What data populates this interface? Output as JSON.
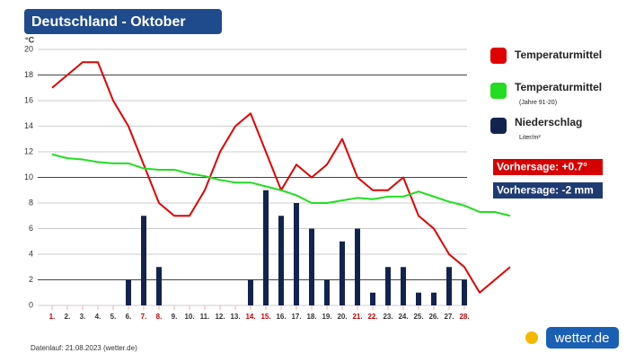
{
  "chart_data": {
    "type": "combo",
    "title": "Deutschland - Oktober",
    "y_label": "°C",
    "ylim": [
      0,
      20
    ],
    "yticks": [
      0,
      2,
      4,
      6,
      8,
      10,
      12,
      14,
      16,
      18,
      20
    ],
    "xlim": [
      1,
      31
    ],
    "xticks": [
      {
        "value": 1,
        "label": "1."
      },
      {
        "value": 2,
        "label": "2."
      },
      {
        "value": 3,
        "label": "3."
      },
      {
        "value": 4,
        "label": "4."
      },
      {
        "value": 5,
        "label": "5."
      },
      {
        "value": 6,
        "label": "6."
      },
      {
        "value": 7,
        "label": "7."
      },
      {
        "value": 8,
        "label": "8."
      },
      {
        "value": 9,
        "label": "9."
      },
      {
        "value": 10,
        "label": "10."
      },
      {
        "value": 11,
        "label": "11."
      },
      {
        "value": 12,
        "label": "12."
      },
      {
        "value": 13,
        "label": "13."
      },
      {
        "value": 14,
        "label": "14."
      },
      {
        "value": 15,
        "label": "15."
      },
      {
        "value": 16,
        "label": "16."
      },
      {
        "value": 17,
        "label": "17."
      },
      {
        "value": 18,
        "label": "18."
      },
      {
        "value": 19,
        "label": "19."
      },
      {
        "value": 20,
        "label": "20."
      },
      {
        "value": 21,
        "label": "21."
      },
      {
        "value": 22,
        "label": "22."
      },
      {
        "value": 23,
        "label": "23."
      },
      {
        "value": 24,
        "label": "24."
      },
      {
        "value": 25,
        "label": "25."
      },
      {
        "value": 26,
        "label": "26."
      },
      {
        "value": 27,
        "label": "27."
      },
      {
        "value": 28,
        "label": "28."
      }
    ],
    "xtick_colors": [
      "#c00000",
      "#333",
      "#333",
      "#333",
      "#333",
      "#333",
      "#c00000",
      "#c00000",
      "#333",
      "#333",
      "#333",
      "#333",
      "#333",
      "#c00000",
      "#c00000",
      "#333",
      "#333",
      "#333",
      "#333",
      "#333",
      "#c00000",
      "#c00000",
      "#333",
      "#333",
      "#333",
      "#333",
      "#333",
      "#c00000"
    ],
    "grid": true,
    "series": [
      {
        "name": "Temperaturmittel",
        "type": "line",
        "color": "#e00000",
        "x": [
          1,
          2,
          3,
          4,
          5,
          6,
          7,
          8,
          9,
          10,
          11,
          12,
          13,
          14,
          15,
          16,
          17,
          18,
          19,
          20,
          21,
          22,
          23,
          24,
          25,
          26,
          27,
          28,
          29,
          30,
          31
        ],
        "values": [
          17,
          18,
          19,
          19,
          16,
          14,
          11,
          8,
          7,
          7,
          9,
          12,
          14,
          15,
          12,
          9,
          11,
          10,
          11,
          13,
          10,
          9,
          9,
          10,
          7,
          6,
          4,
          3,
          1,
          2,
          3
        ]
      },
      {
        "name": "Temperaturmittel",
        "sublabel": "(Jahre 91-20)",
        "type": "line",
        "color": "#22dd22",
        "x": [
          1,
          2,
          3,
          4,
          5,
          6,
          7,
          8,
          9,
          10,
          11,
          12,
          13,
          14,
          15,
          16,
          17,
          18,
          19,
          20,
          21,
          22,
          23,
          24,
          25,
          26,
          27,
          28,
          29,
          30,
          31
        ],
        "values": [
          11.8,
          11.5,
          11.4,
          11.2,
          11.1,
          11.1,
          10.7,
          10.6,
          10.6,
          10.3,
          10.1,
          9.8,
          9.6,
          9.6,
          9.3,
          9,
          8.6,
          8,
          8,
          8.2,
          8.4,
          8.3,
          8.5,
          8.5,
          8.9,
          8.5,
          8.1,
          7.8,
          7.3,
          7.3,
          7
        ]
      },
      {
        "name": "Niederschlag",
        "sublabel": "Liter/m²",
        "type": "bar",
        "color": "#13234f",
        "x": [
          1,
          2,
          3,
          4,
          5,
          6,
          7,
          8,
          9,
          10,
          11,
          12,
          13,
          14,
          15,
          16,
          17,
          18,
          19,
          20,
          21,
          22,
          23,
          24,
          25,
          26,
          27,
          28
        ],
        "values": [
          0,
          0,
          0,
          0,
          0,
          2,
          7,
          3,
          0,
          0,
          0,
          0,
          0,
          2,
          9,
          7,
          8,
          6,
          2,
          5,
          6,
          1,
          3,
          3,
          1,
          1,
          3,
          2
        ]
      }
    ],
    "annotations": [
      {
        "text": "Vorhersage: +0.7°",
        "color": "#d60000"
      },
      {
        "text": "Vorhersage: -2 mm",
        "color": "#1f3b73"
      }
    ],
    "footer": "Datenlauf: 21.08.2023 (wetter.de)",
    "logo": "wetter.de"
  }
}
